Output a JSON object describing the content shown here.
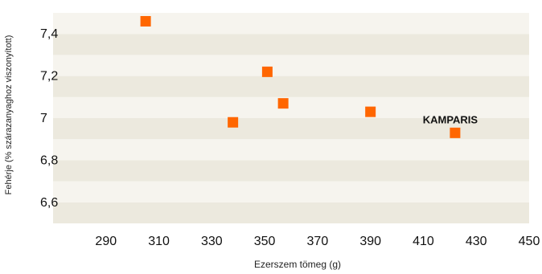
{
  "chart_data": {
    "type": "scatter",
    "title": "",
    "xlabel": "Ezerszem tömeg (g)",
    "ylabel": "Fehérje (% szárazanyaghoz viszonyított)",
    "xlim": [
      270,
      450
    ],
    "ylim": [
      6.5,
      7.5
    ],
    "xticks": [
      290,
      310,
      330,
      350,
      370,
      390,
      410,
      430,
      450
    ],
    "yticks": [
      6.6,
      6.8,
      7.0,
      7.2,
      7.4
    ],
    "ytick_labels": [
      "6,6",
      "6,8",
      "7",
      "7,2",
      "7,4"
    ],
    "grid": "alternating horizontal bands",
    "legend": "none",
    "marker": "square",
    "marker_color": "#FF6600",
    "band_colors": [
      "#ECE9DE",
      "#F6F4EE"
    ],
    "series": [
      {
        "points": [
          {
            "x": 305,
            "y": 7.46
          },
          {
            "x": 338,
            "y": 6.98
          },
          {
            "x": 351,
            "y": 7.22
          },
          {
            "x": 357,
            "y": 7.07
          },
          {
            "x": 390,
            "y": 7.03
          },
          {
            "x": 422,
            "y": 6.93,
            "label": "KAMPARIS"
          }
        ]
      }
    ]
  }
}
